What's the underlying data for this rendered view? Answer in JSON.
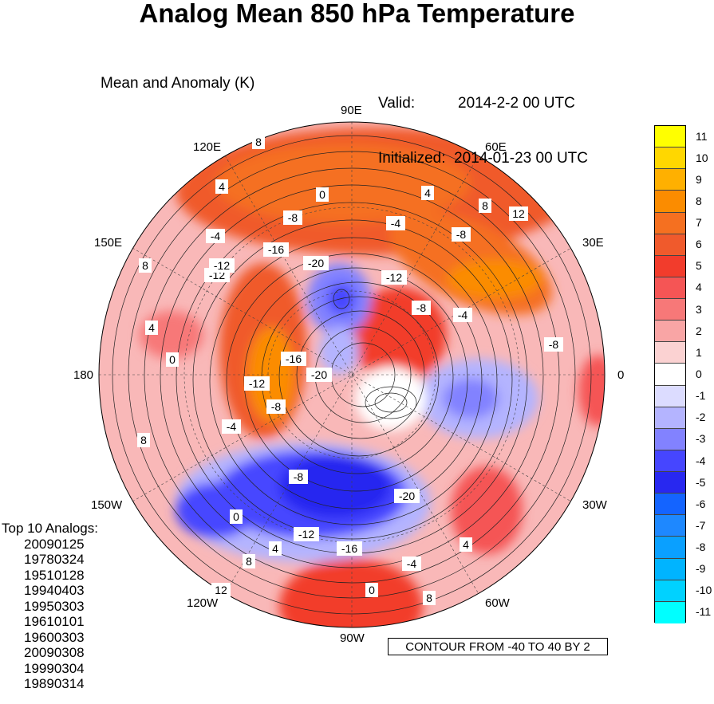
{
  "title": "Analog Mean 850 hPa Temperature",
  "subtitle": "Mean and Anomaly (K)",
  "valid": {
    "valid_label": "Valid:",
    "valid_value": "2014-2-2 00 UTC",
    "init_label": "Initialized:",
    "init_value": "2014-01-23 00 UTC"
  },
  "longitude_labels": {
    "lon_90E": "90E",
    "lon_120E": "120E",
    "lon_60E": "60E",
    "lon_150E": "150E",
    "lon_30E": "30E",
    "lon_180": "180",
    "lon_0": "0",
    "lon_150W": "150W",
    "lon_30W": "30W",
    "lon_120W": "120W",
    "lon_60W": "60W",
    "lon_90W": "90W"
  },
  "colorbar": {
    "labels": [
      "11",
      "10",
      "9",
      "8",
      "7",
      "6",
      "5",
      "4",
      "3",
      "2",
      "1",
      "0",
      "-1",
      "-2",
      "-3",
      "-4",
      "-5",
      "-6",
      "-7",
      "-8",
      "-9",
      "-10",
      "-11"
    ],
    "colors": [
      "#ffff00",
      "#ffd700",
      "#ffb000",
      "#fb8c00",
      "#f57020",
      "#f05a2c",
      "#f23c2c",
      "#f55555",
      "#f77878",
      "#f9a5a5",
      "#fbd2d2",
      "#ffffff",
      "#dcdcff",
      "#b4b4ff",
      "#8282ff",
      "#4646ff",
      "#2828f0",
      "#1464ff",
      "#1e88ff",
      "#0aa0ff",
      "#00b4ff",
      "#00d2ff",
      "#00ffff"
    ]
  },
  "analogs": {
    "heading": "Top 10 Analogs:",
    "dates": [
      "20090125",
      "19780324",
      "19510128",
      "19940403",
      "19950303",
      "19610101",
      "19600303",
      "20090308",
      "19990304",
      "19890314"
    ]
  },
  "contour_note": "CONTOUR FROM -40 TO 40 BY 2",
  "contour_labels": [
    "8",
    "4",
    "0",
    "4",
    "8",
    "12",
    "-4",
    "-8",
    "-4",
    "-8",
    "-16",
    "-20",
    "-12",
    "-12",
    "-8",
    "-4",
    "8",
    "4",
    "0",
    "-12",
    "-16",
    "-20",
    "-8",
    "8",
    "-4",
    "-8",
    "0",
    "-12",
    "-16",
    "-20",
    "4",
    "-4",
    "8",
    "0",
    "4",
    "12",
    "8",
    "-8",
    "-12"
  ]
}
